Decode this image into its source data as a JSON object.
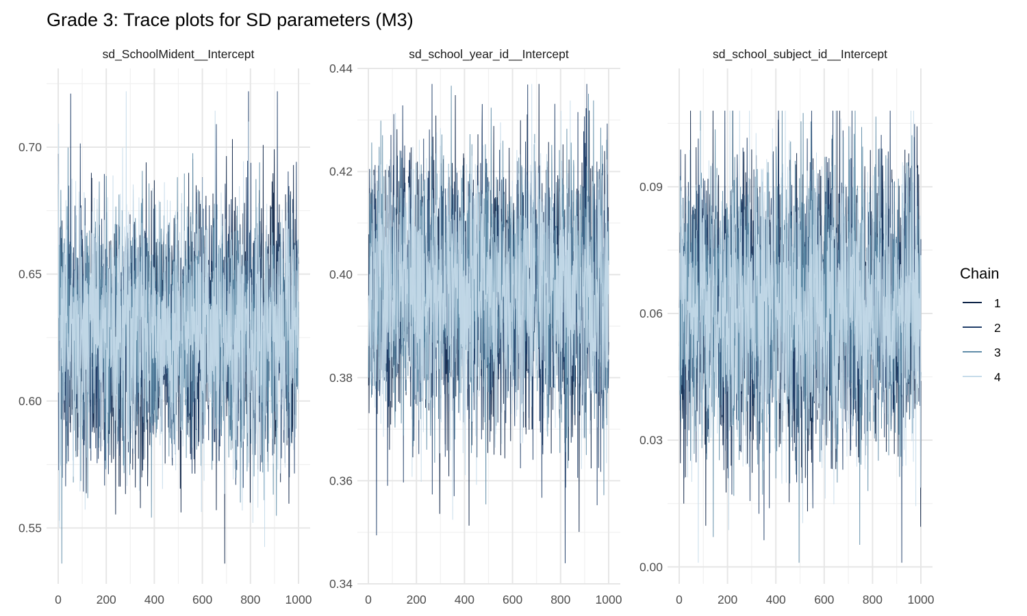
{
  "chart_data": {
    "type": "line",
    "title": "Grade 3: Trace plots for SD parameters (M3)",
    "legend": {
      "title": "Chain",
      "position": "right",
      "entries": [
        "1",
        "2",
        "3",
        "4"
      ]
    },
    "series_colors": [
      "#0d2346",
      "#1f3d68",
      "#5f8ca8",
      "#c6dbea"
    ],
    "grid": true,
    "note_values": "Per-iteration draws (1000 per chain) are not individually legible; panels give approximate mean, spread and extremes read from the axes.",
    "panels": [
      {
        "strip": "sd_SchoolMident__Intercept",
        "xlim": [
          0,
          1000
        ],
        "ylim": [
          0.528,
          0.731
        ],
        "xticks": [
          "0",
          "200",
          "400",
          "600",
          "800",
          "1000"
        ],
        "xtick_values": [
          0,
          200,
          400,
          600,
          800,
          1000
        ],
        "yticks": [
          "0.55",
          "0.60",
          "0.65",
          "0.70"
        ],
        "ytick_values": [
          0.55,
          0.6,
          0.65,
          0.7
        ],
        "mean": 0.628,
        "sd": 0.025,
        "min": 0.536,
        "max": 0.722
      },
      {
        "strip": "sd_school_year_id__Intercept",
        "xlim": [
          0,
          1000
        ],
        "ylim": [
          0.34,
          0.44
        ],
        "xticks": [
          "0",
          "200",
          "400",
          "600",
          "800",
          "1000"
        ],
        "xtick_values": [
          0,
          200,
          400,
          600,
          800,
          1000
        ],
        "yticks": [
          "0.34",
          "0.36",
          "0.38",
          "0.40",
          "0.42",
          "0.44"
        ],
        "ytick_values": [
          0.34,
          0.36,
          0.38,
          0.4,
          0.42,
          0.44
        ],
        "mean": 0.397,
        "sd": 0.013,
        "min": 0.344,
        "max": 0.437
      },
      {
        "strip": "sd_school_subject_id__Intercept",
        "xlim": [
          0,
          1000
        ],
        "ylim": [
          -0.004,
          0.118
        ],
        "xticks": [
          "0",
          "200",
          "400",
          "600",
          "800",
          "1000"
        ],
        "xtick_values": [
          0,
          200,
          400,
          600,
          800,
          1000
        ],
        "yticks": [
          "0.00",
          "0.03",
          "0.06",
          "0.09"
        ],
        "ytick_values": [
          0.0,
          0.03,
          0.06,
          0.09
        ],
        "mean": 0.062,
        "sd": 0.017,
        "min": 0.001,
        "max": 0.108
      }
    ]
  }
}
